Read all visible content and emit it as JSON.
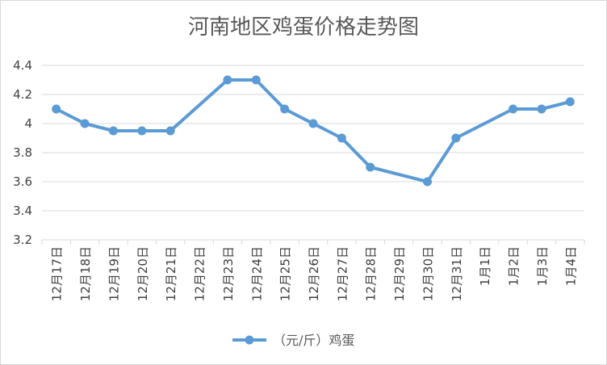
{
  "chart_data": {
    "type": "line",
    "title": "河南地区鸡蛋价格走势图",
    "categories": [
      "12月17日",
      "12月18日",
      "12月19日",
      "12月20日",
      "12月21日",
      "12月22日",
      "12月23日",
      "12月24日",
      "12月25日",
      "12月26日",
      "12月27日",
      "12月28日",
      "12月29日",
      "12月30日",
      "12月31日",
      "1月1日",
      "1月2日",
      "1月3日",
      "1月4日"
    ],
    "series": [
      {
        "name": "（元/斤）鸡蛋",
        "color": "#5b9bd5",
        "values": [
          4.1,
          4.0,
          3.95,
          3.95,
          3.95,
          null,
          4.3,
          4.3,
          4.1,
          4.0,
          3.9,
          3.7,
          null,
          3.6,
          3.9,
          null,
          4.1,
          4.1,
          4.15
        ]
      }
    ],
    "yticks": [
      "3.2",
      "3.4",
      "3.6",
      "3.8",
      "4",
      "4.2",
      "4.4"
    ],
    "ylim": [
      3.2,
      4.4
    ],
    "grid": true,
    "legend_position": "bottom",
    "gridline_color": "#d9d9d9"
  }
}
